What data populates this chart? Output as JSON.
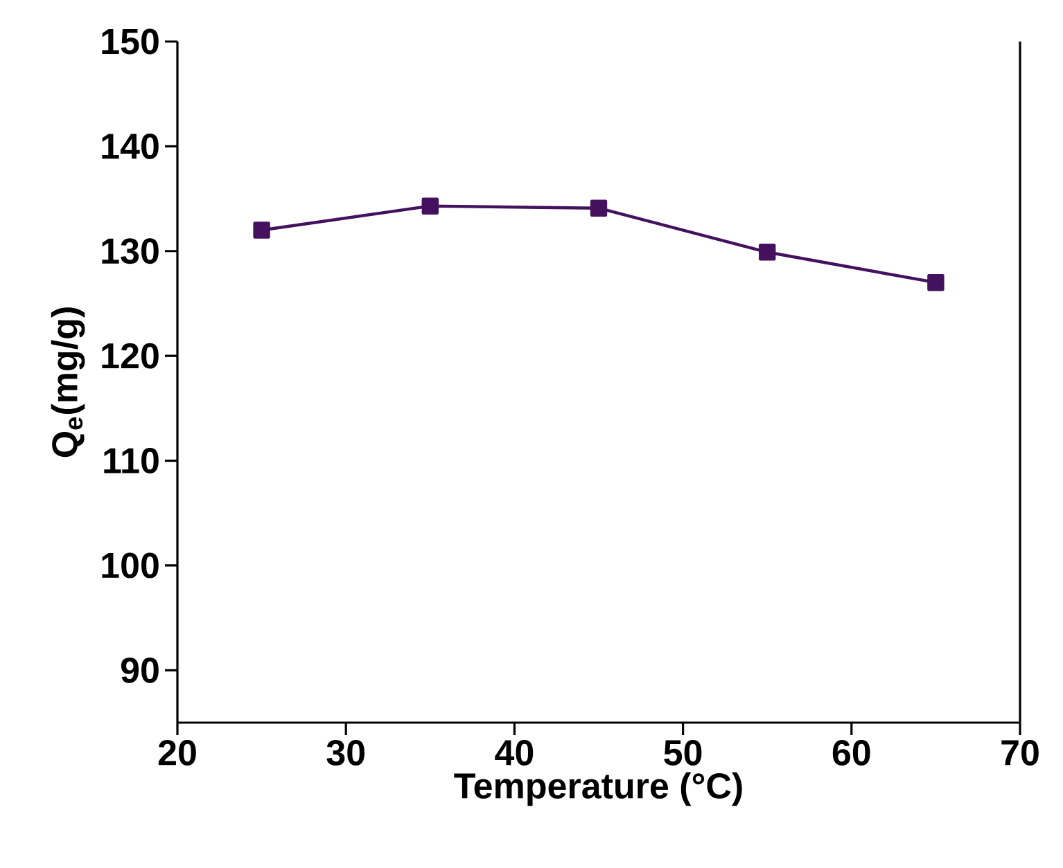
{
  "chart_data": {
    "type": "line",
    "xlabel": "Temperature (°C)",
    "ylabel": "Q$_{e}$(mg/g)",
    "x": [
      25,
      35,
      45,
      55,
      65
    ],
    "series": [
      {
        "color": "#43115e",
        "values": [
          132.0,
          134.3,
          134.1,
          129.9,
          127.0
        ]
      }
    ],
    "xlim": [
      20,
      70
    ],
    "ylim": [
      85,
      150
    ],
    "xticks": [
      20,
      30,
      40,
      50,
      60,
      70
    ],
    "yticks": [
      90,
      100,
      110,
      120,
      130,
      140,
      150
    ],
    "marker": "square",
    "line_style": "solid"
  }
}
